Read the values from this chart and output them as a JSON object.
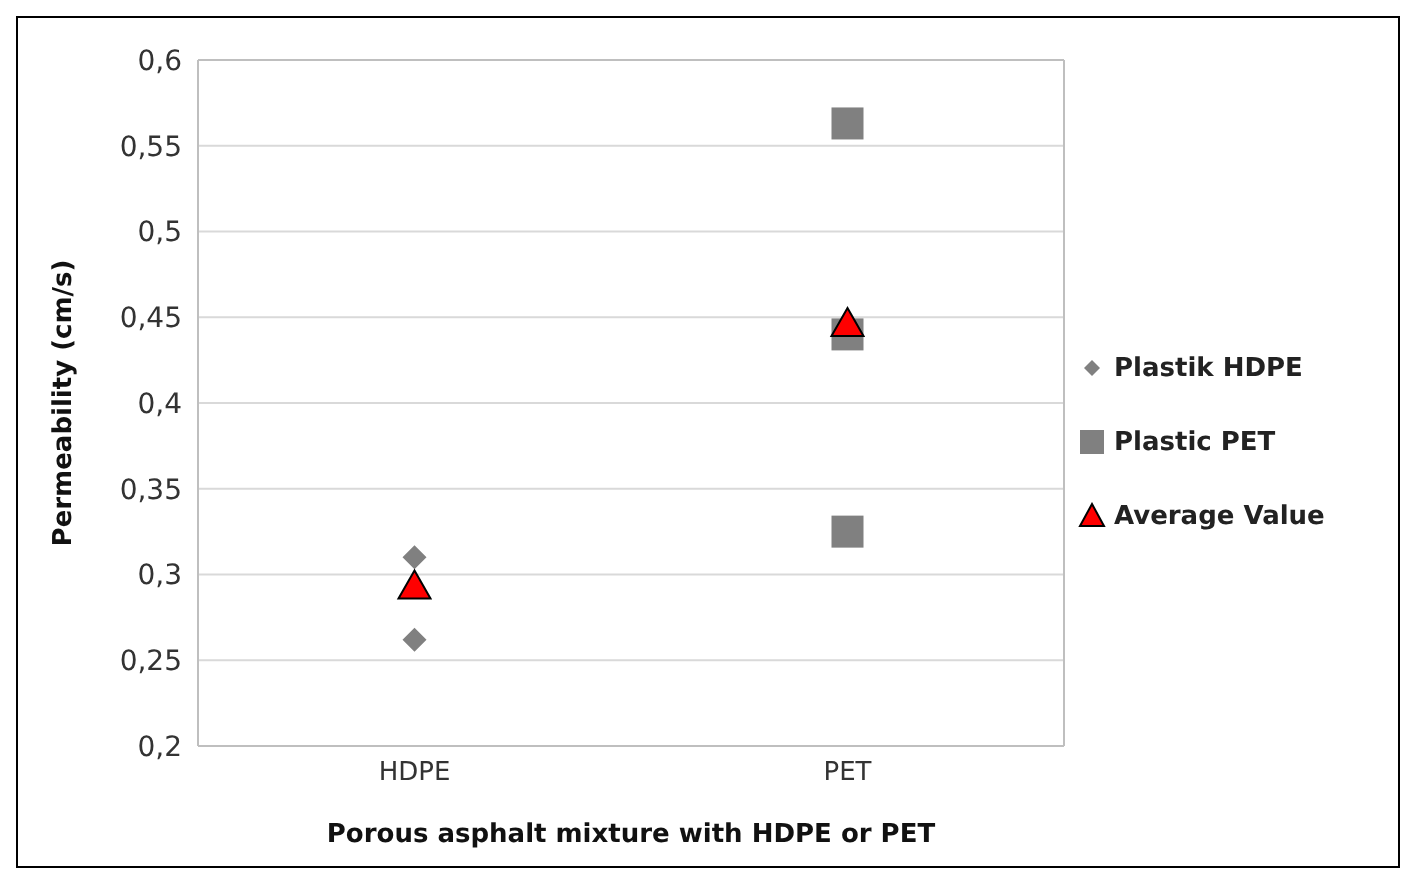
{
  "chart_data": {
    "type": "scatter",
    "xlabel": "Porous asphalt mixture with HDPE or PET",
    "ylabel": "Permeability (cm/s)",
    "categories": [
      "HDPE",
      "PET"
    ],
    "series": [
      {
        "name": "Plastik HDPE",
        "color": "#808080",
        "marker": "diamond",
        "x": [
          "HDPE",
          "HDPE"
        ],
        "values": [
          0.31,
          0.262
        ]
      },
      {
        "name": "Plastic PET",
        "color": "#808080",
        "marker": "square",
        "x": [
          "PET",
          "PET",
          "PET"
        ],
        "values": [
          0.563,
          0.44,
          0.325
        ]
      },
      {
        "name": "Average Value",
        "color": "#ff0000",
        "marker": "triangle",
        "x": [
          "HDPE",
          "PET"
        ],
        "values": [
          0.293,
          0.446
        ]
      }
    ],
    "ylim": [
      0.2,
      0.6
    ],
    "yticks": [
      {
        "value": 0.2,
        "label": "0,2"
      },
      {
        "value": 0.25,
        "label": "0,25"
      },
      {
        "value": 0.3,
        "label": "0,3"
      },
      {
        "value": 0.35,
        "label": "0,35"
      },
      {
        "value": 0.4,
        "label": "0,4"
      },
      {
        "value": 0.45,
        "label": "0,45"
      },
      {
        "value": 0.5,
        "label": "0,5"
      },
      {
        "value": 0.55,
        "label": "0,55"
      },
      {
        "value": 0.6,
        "label": "0,6"
      }
    ],
    "grid": "y",
    "legend": "right"
  }
}
